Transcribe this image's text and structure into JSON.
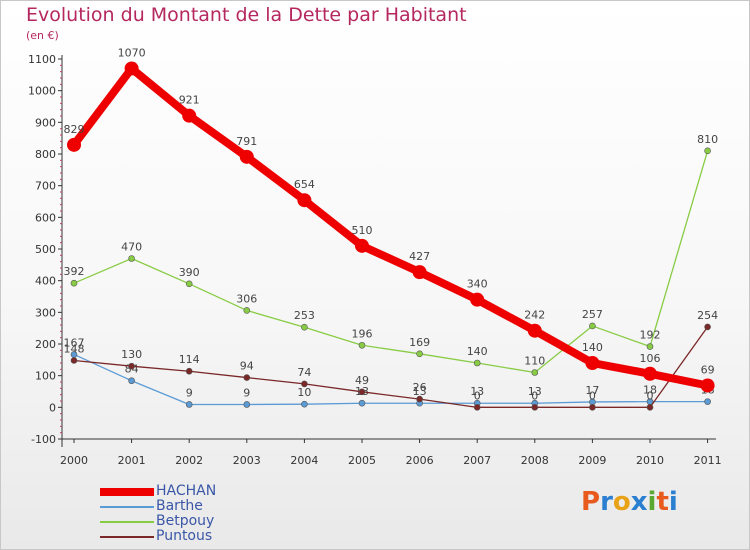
{
  "chart_data": {
    "type": "line",
    "title": "Evolution du Montant de la Dette par Habitant",
    "unit_label": "(en €)",
    "x": [
      "2000",
      "2001",
      "2002",
      "2003",
      "2004",
      "2005",
      "2006",
      "2007",
      "2008",
      "2009",
      "2010",
      "2011"
    ],
    "ylim": [
      -100,
      1100
    ],
    "yticks": [
      -100,
      0,
      100,
      200,
      300,
      400,
      500,
      600,
      700,
      800,
      900,
      1000,
      1100
    ],
    "grid": false,
    "series": [
      {
        "name": "HACHAN",
        "color": "#ee0000",
        "values": [
          829,
          1070,
          921,
          791,
          654,
          510,
          427,
          340,
          242,
          140,
          106,
          69
        ],
        "labels": [
          "829",
          "1070",
          "921",
          "791",
          "654",
          "510",
          "427",
          "340",
          "242",
          "140",
          "106",
          "69"
        ]
      },
      {
        "name": "Barthe",
        "color": "#5b9bd5",
        "values": [
          167,
          84,
          9,
          9,
          10,
          13,
          13,
          13,
          13,
          17,
          18,
          18
        ],
        "labels": [
          "167",
          "84",
          "9",
          "9",
          "10",
          "13",
          "13",
          "13",
          "13",
          "17",
          "18",
          "18"
        ]
      },
      {
        "name": "Betpouy",
        "color": "#88cc44",
        "values": [
          392,
          470,
          390,
          306,
          253,
          196,
          169,
          140,
          110,
          257,
          192,
          810
        ],
        "labels": [
          "392",
          "470",
          "390",
          "306",
          "253",
          "196",
          "169",
          "140",
          "110",
          "257",
          "192",
          "810"
        ]
      },
      {
        "name": "Puntous",
        "color": "#7a2828",
        "values": [
          148,
          130,
          114,
          94,
          74,
          49,
          26,
          0,
          0,
          0,
          0,
          254
        ],
        "labels": [
          "148",
          "130",
          "114",
          "94",
          "74",
          "49",
          "26",
          "0",
          "0",
          "0",
          "0",
          "254"
        ]
      }
    ]
  },
  "legend_position": "bottom-left",
  "logo": {
    "text": "Proxiti",
    "letters": [
      "P",
      "r",
      "o",
      "x",
      "i",
      "t",
      "i"
    ],
    "colors": [
      "#e85a1d",
      "#2b7fd1",
      "#e8a317",
      "#2b7fd1",
      "#5aa832",
      "#e85a1d",
      "#2b7fd1"
    ]
  }
}
